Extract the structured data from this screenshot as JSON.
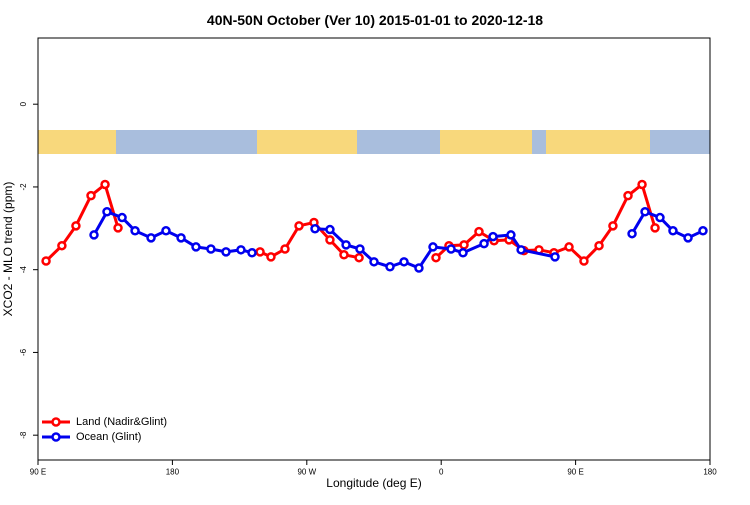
{
  "chart_data": {
    "type": "line",
    "title": "40N-50N October (Ver 10)   2015-01-01 to 2020-12-18",
    "xlabel": "Longitude (deg E)",
    "ylabel": "XCO2 - MLO trend (ppm)",
    "xlim": [
      90,
      540
    ],
    "ylim": [
      -8.6,
      1.6
    ],
    "xticks": [
      {
        "value": 90,
        "label": "90 E"
      },
      {
        "value": 180,
        "label": "180"
      },
      {
        "value": 270,
        "label": "90 W"
      },
      {
        "value": 360,
        "label": "0"
      },
      {
        "value": 450,
        "label": "90 E"
      },
      {
        "value": 540,
        "label": "180"
      }
    ],
    "yticks": [
      0,
      -2,
      -4,
      -6,
      -8
    ],
    "legend": "bottom-left",
    "series": [
      {
        "name": "Land (Nadir&Glint)",
        "color": "#ff0000",
        "x": [
          95.4,
          106,
          115.4,
          125.5,
          134.9,
          143.6,
          null,
          238.7,
          246,
          255.4,
          264.8,
          274.8,
          285.5,
          294.9,
          305,
          null,
          356.5,
          365.2,
          375.3,
          385.3,
          395.4,
          405.4,
          415.4,
          425.5,
          435.5,
          445.6,
          455.6,
          465.7,
          475,
          485.1,
          494.5,
          503.2
        ],
        "values": [
          -3.79,
          -3.42,
          -2.94,
          -2.21,
          -1.94,
          -2.99,
          null,
          -3.57,
          -3.69,
          -3.5,
          -2.94,
          -2.86,
          -3.28,
          -3.64,
          -3.71,
          null,
          -3.71,
          -3.42,
          -3.4,
          -3.08,
          -3.3,
          -3.28,
          -3.54,
          -3.52,
          -3.59,
          -3.45,
          -3.79,
          -3.42,
          -2.94,
          -2.21,
          -1.94,
          -2.99
        ]
      },
      {
        "name": "Ocean (Glint)",
        "color": "#0000ee",
        "x": [
          127.5,
          136.2,
          146.3,
          155,
          165.7,
          175.7,
          185.8,
          195.8,
          205.8,
          215.9,
          225.9,
          233.3,
          null,
          275.5,
          285.5,
          296.3,
          305.6,
          315,
          325.7,
          335.1,
          345.1,
          354.5,
          366.6,
          374.6,
          388.7,
          394.7,
          406.7,
          413.5,
          436.2,
          null,
          487.8,
          496.5,
          506.5,
          515.2,
          525.3,
          535.3
        ],
        "values": [
          -3.16,
          -2.6,
          -2.74,
          -3.06,
          -3.23,
          -3.06,
          -3.23,
          -3.45,
          -3.5,
          -3.57,
          -3.52,
          -3.59,
          null,
          -3.01,
          -3.03,
          -3.4,
          -3.5,
          -3.81,
          -3.93,
          -3.81,
          -3.96,
          -3.45,
          -3.5,
          -3.59,
          -3.37,
          -3.2,
          -3.16,
          -3.52,
          -3.69,
          null,
          -3.13,
          -2.6,
          -2.74,
          -3.06,
          -3.23,
          -3.06
        ]
      }
    ]
  }
}
